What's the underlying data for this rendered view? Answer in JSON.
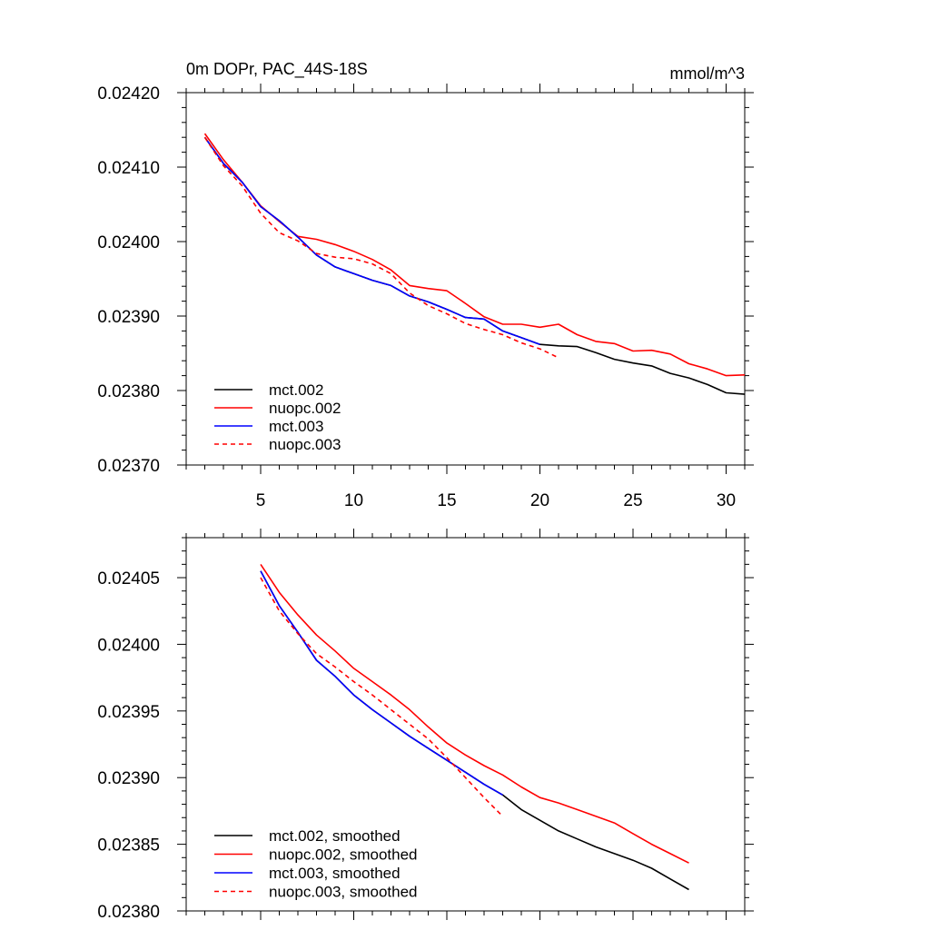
{
  "chart_data": [
    {
      "type": "line",
      "title": "0m DOPr, PAC_44S-18S",
      "units": "mmol/m^3",
      "xlabel": "",
      "ylabel": "",
      "xlim": [
        1,
        31
      ],
      "ylim": [
        0.0237,
        0.0242
      ],
      "xticks": [
        5,
        10,
        15,
        20,
        25,
        30
      ],
      "xtick_labels": [
        "5",
        "10",
        "15",
        "20",
        "25",
        "30"
      ],
      "yticks": [
        0.0237,
        0.0238,
        0.0239,
        0.024,
        0.0241,
        0.0242
      ],
      "ytick_labels": [
        "0.02370",
        "0.02380",
        "0.02390",
        "0.02400",
        "0.02410",
        "0.02420"
      ],
      "legend_position": "bottom-left",
      "series": [
        {
          "name": "mct.002",
          "color": "#000000",
          "dash": "solid",
          "x": [
            2,
            3,
            4,
            5,
            6,
            7,
            8,
            9,
            10,
            11,
            12,
            13,
            14,
            15,
            16,
            17,
            18,
            19,
            20,
            21,
            22,
            23,
            24,
            25,
            26,
            27,
            28,
            29,
            30,
            31
          ],
          "values": [
            0.02414,
            0.024105,
            0.02408,
            0.024047,
            0.024028,
            0.024006,
            0.023982,
            0.023966,
            0.023957,
            0.023948,
            0.023941,
            0.023927,
            0.023919,
            0.023909,
            0.023898,
            0.023896,
            0.02388,
            0.023871,
            0.023862,
            0.02386,
            0.023859,
            0.023851,
            0.023842,
            0.023837,
            0.023833,
            0.023823,
            0.023817,
            0.023808,
            0.023797,
            0.023795
          ]
        },
        {
          "name": "nuopc.002",
          "color": "#ff0000",
          "dash": "solid",
          "x": [
            2,
            3,
            4,
            5,
            6,
            7,
            8,
            9,
            10,
            11,
            12,
            13,
            14,
            15,
            16,
            17,
            18,
            19,
            20,
            21,
            22,
            23,
            24,
            25,
            26,
            27,
            28,
            29,
            30,
            31
          ],
          "values": [
            0.024145,
            0.02411,
            0.02408,
            0.024048,
            0.024027,
            0.024007,
            0.024003,
            0.023996,
            0.023987,
            0.023976,
            0.023962,
            0.023941,
            0.023937,
            0.023934,
            0.023917,
            0.023899,
            0.023889,
            0.023889,
            0.023885,
            0.023889,
            0.023875,
            0.023866,
            0.023863,
            0.023853,
            0.023854,
            0.023849,
            0.023836,
            0.023829,
            0.02382,
            0.023821
          ]
        },
        {
          "name": "mct.003",
          "color": "#0000ff",
          "dash": "solid",
          "x": [
            2,
            3,
            4,
            5,
            6,
            7,
            8,
            9,
            10,
            11,
            12,
            13,
            14,
            15,
            16,
            17,
            18,
            19,
            20
          ],
          "values": [
            0.02414,
            0.024105,
            0.02408,
            0.024047,
            0.024028,
            0.024006,
            0.023982,
            0.023966,
            0.023957,
            0.023948,
            0.023941,
            0.023927,
            0.023919,
            0.023909,
            0.023898,
            0.023896,
            0.02388,
            0.023871,
            0.023862
          ]
        },
        {
          "name": "nuopc.003",
          "color": "#ff0000",
          "dash": "dashed",
          "x": [
            2,
            3,
            4,
            5,
            6,
            7,
            8,
            9,
            10,
            11,
            12,
            13,
            14,
            15,
            16,
            17,
            18,
            19,
            20,
            21
          ],
          "values": [
            0.02414,
            0.024102,
            0.024075,
            0.024038,
            0.024012,
            0.024001,
            0.023984,
            0.023979,
            0.023977,
            0.02397,
            0.023957,
            0.023931,
            0.023914,
            0.023903,
            0.02389,
            0.023882,
            0.023875,
            0.023864,
            0.023856,
            0.023844
          ]
        }
      ]
    },
    {
      "type": "line",
      "title": "",
      "xlabel": "",
      "ylabel": "",
      "xlim": [
        1,
        31
      ],
      "ylim": [
        0.0238,
        0.02408
      ],
      "xticks": [
        5,
        10,
        15,
        20,
        25,
        30
      ],
      "xtick_labels": [],
      "yticks": [
        0.0238,
        0.02385,
        0.0239,
        0.02395,
        0.024,
        0.02405
      ],
      "ytick_labels": [
        "0.02380",
        "0.02385",
        "0.02390",
        "0.02395",
        "0.02400",
        "0.02405"
      ],
      "legend_position": "bottom-left",
      "series": [
        {
          "name": "mct.002, smoothed",
          "color": "#000000",
          "dash": "solid",
          "x": [
            5,
            6,
            7,
            8,
            9,
            10,
            11,
            12,
            13,
            14,
            15,
            16,
            17,
            18,
            19,
            20,
            21,
            22,
            23,
            24,
            25,
            26,
            27,
            28
          ],
          "values": [
            0.024055,
            0.024029,
            0.024009,
            0.023988,
            0.023976,
            0.023962,
            0.023951,
            0.023941,
            0.023931,
            0.023922,
            0.023913,
            0.023904,
            0.023895,
            0.023887,
            0.023876,
            0.023868,
            0.02386,
            0.023854,
            0.023848,
            0.023843,
            0.023838,
            0.023832,
            0.023824,
            0.023816
          ]
        },
        {
          "name": "nuopc.002, smoothed",
          "color": "#ff0000",
          "dash": "solid",
          "x": [
            5,
            6,
            7,
            8,
            9,
            10,
            11,
            12,
            13,
            14,
            15,
            16,
            17,
            18,
            19,
            20,
            21,
            22,
            23,
            24,
            25,
            26,
            27,
            28
          ],
          "values": [
            0.02406,
            0.024039,
            0.024022,
            0.024007,
            0.023995,
            0.023982,
            0.023972,
            0.023962,
            0.023951,
            0.023938,
            0.023926,
            0.023917,
            0.023909,
            0.023902,
            0.023893,
            0.023885,
            0.023881,
            0.023876,
            0.023871,
            0.023866,
            0.023858,
            0.02385,
            0.023843,
            0.023836
          ]
        },
        {
          "name": "mct.003, smoothed",
          "color": "#0000ff",
          "dash": "solid",
          "x": [
            5,
            6,
            7,
            8,
            9,
            10,
            11,
            12,
            13,
            14,
            15,
            16,
            17,
            18
          ],
          "values": [
            0.024055,
            0.024029,
            0.024009,
            0.023988,
            0.023976,
            0.023962,
            0.023951,
            0.023941,
            0.023931,
            0.023922,
            0.023913,
            0.023904,
            0.023895,
            0.023887
          ]
        },
        {
          "name": "nuopc.003, smoothed",
          "color": "#ff0000",
          "dash": "dashed",
          "x": [
            5,
            6,
            7,
            8,
            9,
            10,
            11,
            12,
            13,
            14,
            15,
            16,
            17,
            18
          ],
          "values": [
            0.02405,
            0.024025,
            0.024008,
            0.023993,
            0.023983,
            0.023972,
            0.023962,
            0.023951,
            0.02394,
            0.023929,
            0.023915,
            0.0239,
            0.023885,
            0.023871
          ]
        }
      ]
    }
  ]
}
